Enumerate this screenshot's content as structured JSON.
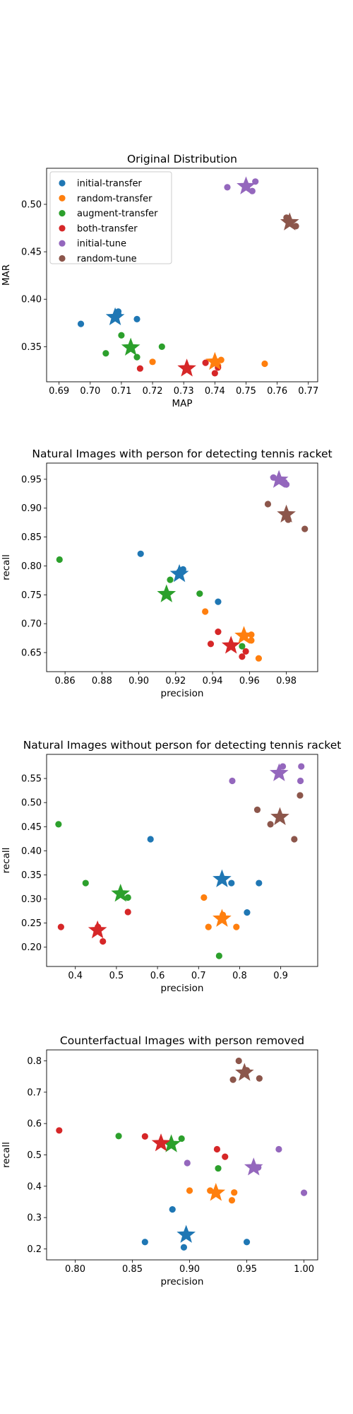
{
  "colors": {
    "initial-transfer": "#1f77b4",
    "random-transfer": "#ff7f0e",
    "augment-transfer": "#2ca02c",
    "both-transfer": "#d62728",
    "initial-tune": "#9467bd",
    "random-tune": "#8c564b"
  },
  "legend": {
    "placement": "top-left",
    "entries": [
      "initial-transfer",
      "random-transfer",
      "augment-transfer",
      "both-transfer",
      "initial-tune",
      "random-tune"
    ]
  },
  "chart_data": [
    {
      "type": "scatter",
      "title": "Original Distribution",
      "xlabel": "MAP",
      "ylabel": "MAR",
      "xlim": [
        0.686,
        0.773
      ],
      "ylim": [
        0.313,
        0.538
      ],
      "xticks": [
        "0.69",
        "0.70",
        "0.71",
        "0.72",
        "0.73",
        "0.74",
        "0.75",
        "0.76",
        "0.77"
      ],
      "yticks": [
        "0.35",
        "0.40",
        "0.45",
        "0.50"
      ],
      "series": [
        {
          "name": "initial-transfer",
          "points": [
            [
              0.697,
              0.374
            ],
            [
              0.709,
              0.387
            ],
            [
              0.709,
              0.384
            ],
            [
              0.715,
              0.379
            ]
          ],
          "mean": [
            0.708,
            0.381
          ]
        },
        {
          "name": "random-transfer",
          "points": [
            [
              0.72,
              0.334
            ],
            [
              0.741,
              0.33
            ],
            [
              0.756,
              0.332
            ],
            [
              0.742,
              0.336
            ]
          ],
          "mean": [
            0.74,
            0.334
          ]
        },
        {
          "name": "augment-transfer",
          "points": [
            [
              0.705,
              0.343
            ],
            [
              0.71,
              0.362
            ],
            [
              0.715,
              0.339
            ],
            [
              0.723,
              0.35
            ]
          ],
          "mean": [
            0.713,
            0.349
          ]
        },
        {
          "name": "both-transfer",
          "points": [
            [
              0.716,
              0.327
            ],
            [
              0.737,
              0.333
            ],
            [
              0.74,
              0.322
            ],
            [
              0.741,
              0.328
            ]
          ],
          "mean": [
            0.731,
            0.327
          ]
        },
        {
          "name": "initial-tune",
          "points": [
            [
              0.744,
              0.518
            ],
            [
              0.753,
              0.524
            ],
            [
              0.752,
              0.514
            ]
          ],
          "mean": [
            0.75,
            0.519
          ]
        },
        {
          "name": "random-tune",
          "points": [
            [
              0.766,
              0.477
            ],
            [
              0.763,
              0.486
            ],
            [
              0.764,
              0.48
            ]
          ],
          "mean": [
            0.764,
            0.481
          ]
        }
      ]
    },
    {
      "type": "scatter",
      "title": "Natural Images with person for detecting tennis racket",
      "xlabel": "precision",
      "ylabel": "recall",
      "xlim": [
        0.85,
        0.997
      ],
      "ylim": [
        0.617,
        0.978
      ],
      "xticks": [
        "0.86",
        "0.88",
        "0.90",
        "0.92",
        "0.94",
        "0.96",
        "0.98"
      ],
      "yticks": [
        "0.65",
        "0.70",
        "0.75",
        "0.80",
        "0.85",
        "0.90",
        "0.95"
      ],
      "series": [
        {
          "name": "initial-transfer",
          "points": [
            [
              0.901,
              0.821
            ],
            [
              0.943,
              0.738
            ],
            [
              0.922,
              0.79
            ],
            [
              0.924,
              0.794
            ]
          ],
          "mean": [
            0.922,
            0.786
          ]
        },
        {
          "name": "random-transfer",
          "points": [
            [
              0.936,
              0.721
            ],
            [
              0.961,
              0.681
            ],
            [
              0.965,
              0.64
            ],
            [
              0.961,
              0.671
            ]
          ],
          "mean": [
            0.957,
            0.679
          ]
        },
        {
          "name": "augment-transfer",
          "points": [
            [
              0.857,
              0.811
            ],
            [
              0.917,
              0.776
            ],
            [
              0.933,
              0.752
            ],
            [
              0.956,
              0.661
            ]
          ],
          "mean": [
            0.915,
            0.751
          ]
        },
        {
          "name": "both-transfer",
          "points": [
            [
              0.939,
              0.665
            ],
            [
              0.943,
              0.686
            ],
            [
              0.956,
              0.643
            ],
            [
              0.958,
              0.652
            ]
          ],
          "mean": [
            0.95,
            0.662
          ]
        },
        {
          "name": "initial-tune",
          "points": [
            [
              0.973,
              0.953
            ],
            [
              0.98,
              0.941
            ],
            [
              0.979,
              0.945
            ]
          ],
          "mean": [
            0.976,
            0.949
          ]
        },
        {
          "name": "random-tune",
          "points": [
            [
              0.97,
              0.907
            ],
            [
              0.99,
              0.864
            ],
            [
              0.981,
              0.88
            ]
          ],
          "mean": [
            0.98,
            0.889
          ]
        }
      ]
    },
    {
      "type": "scatter",
      "title": "Natural Images without person for detecting tennis racket",
      "xlabel": "precision",
      "ylabel": "recall",
      "xlim": [
        0.33,
        0.99
      ],
      "ylim": [
        0.16,
        0.6
      ],
      "xticks": [
        "0.4",
        "0.5",
        "0.6",
        "0.7",
        "0.8",
        "0.9"
      ],
      "yticks": [
        "0.20",
        "0.25",
        "0.30",
        "0.35",
        "0.40",
        "0.45",
        "0.50",
        "0.55"
      ],
      "series": [
        {
          "name": "initial-transfer",
          "points": [
            [
              0.583,
              0.424
            ],
            [
              0.78,
              0.333
            ],
            [
              0.818,
              0.272
            ],
            [
              0.847,
              0.333
            ]
          ],
          "mean": [
            0.757,
            0.341
          ]
        },
        {
          "name": "random-transfer",
          "points": [
            [
              0.713,
              0.303
            ],
            [
              0.724,
              0.242
            ],
            [
              0.792,
              0.242
            ],
            [
              0.759,
              0.267
            ]
          ],
          "mean": [
            0.757,
            0.259
          ]
        },
        {
          "name": "augment-transfer",
          "points": [
            [
              0.359,
              0.455
            ],
            [
              0.425,
              0.333
            ],
            [
              0.528,
              0.303
            ],
            [
              0.75,
              0.182
            ]
          ],
          "mean": [
            0.51,
            0.311
          ]
        },
        {
          "name": "both-transfer",
          "points": [
            [
              0.365,
              0.242
            ],
            [
              0.467,
              0.212
            ],
            [
              0.528,
              0.273
            ],
            [
              0.455,
              0.242
            ]
          ],
          "mean": [
            0.454,
            0.235
          ]
        },
        {
          "name": "initial-tune",
          "points": [
            [
              0.782,
              0.545
            ],
            [
              0.905,
              0.575
            ],
            [
              0.948,
              0.545
            ],
            [
              0.95,
              0.575
            ]
          ],
          "mean": [
            0.896,
            0.561
          ]
        },
        {
          "name": "random-tune",
          "points": [
            [
              0.843,
              0.485
            ],
            [
              0.875,
              0.455
            ],
            [
              0.933,
              0.424
            ],
            [
              0.947,
              0.515
            ]
          ],
          "mean": [
            0.898,
            0.47
          ]
        }
      ]
    },
    {
      "type": "scatter",
      "title": "Counterfactual Images with person removed",
      "xlabel": "precision",
      "ylabel": "recall",
      "xlim": [
        0.775,
        1.012
      ],
      "ylim": [
        0.165,
        0.835
      ],
      "xticks": [
        "0.80",
        "0.85",
        "0.90",
        "0.95",
        "1.00"
      ],
      "yticks": [
        "0.2",
        "0.3",
        "0.4",
        "0.5",
        "0.6",
        "0.7",
        "0.8"
      ],
      "series": [
        {
          "name": "initial-transfer",
          "points": [
            [
              0.861,
              0.222
            ],
            [
              0.885,
              0.326
            ],
            [
              0.895,
              0.205
            ],
            [
              0.95,
              0.222
            ]
          ],
          "mean": [
            0.897,
            0.245
          ]
        },
        {
          "name": "random-transfer",
          "points": [
            [
              0.9,
              0.386
            ],
            [
              0.918,
              0.386
            ],
            [
              0.937,
              0.355
            ],
            [
              0.939,
              0.38
            ]
          ],
          "mean": [
            0.923,
            0.379
          ]
        },
        {
          "name": "augment-transfer",
          "points": [
            [
              0.838,
              0.56
            ],
            [
              0.893,
              0.552
            ],
            [
              0.925,
              0.457
            ],
            [
              0.885,
              0.535
            ]
          ],
          "mean": [
            0.884,
            0.534
          ]
        },
        {
          "name": "both-transfer",
          "points": [
            [
              0.786,
              0.578
            ],
            [
              0.861,
              0.559
            ],
            [
              0.924,
              0.518
            ],
            [
              0.931,
              0.494
            ]
          ],
          "mean": [
            0.875,
            0.537
          ]
        },
        {
          "name": "initial-tune",
          "points": [
            [
              0.898,
              0.474
            ],
            [
              0.978,
              0.518
            ],
            [
              1.0,
              0.379
            ],
            [
              0.96,
              0.46
            ]
          ],
          "mean": [
            0.956,
            0.46
          ]
        },
        {
          "name": "random-tune",
          "points": [
            [
              0.938,
              0.74
            ],
            [
              0.943,
              0.8
            ],
            [
              0.961,
              0.744
            ],
            [
              0.95,
              0.77
            ]
          ],
          "mean": [
            0.948,
            0.762
          ]
        }
      ]
    }
  ]
}
